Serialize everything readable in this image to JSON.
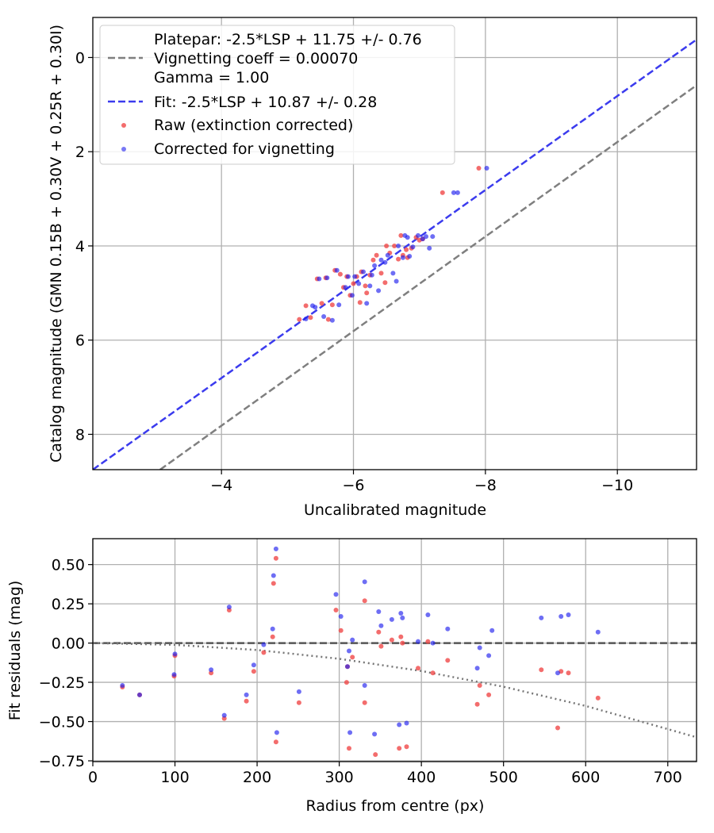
{
  "chart_data": [
    {
      "type": "scatter",
      "ylabel": "Catalog magnitude (GMN 0.15B + 0.30V + 0.25R + 0.30I)",
      "xlabel": "Uncalibrated magnitude",
      "xlim": [
        -2.05,
        -11.2
      ],
      "ylim": [
        8.75,
        -0.85
      ],
      "xticks": [
        -4,
        -6,
        -8,
        -10
      ],
      "xtick_labels": [
        "−4",
        "−6",
        "−8",
        "−10"
      ],
      "yticks": [
        0,
        2,
        4,
        6,
        8
      ],
      "ytick_labels": [
        "0",
        "2",
        "4",
        "6",
        "8"
      ],
      "grid": true,
      "legend_position": "top-left",
      "legend": [
        {
          "label": "Platepar: -2.5*LSP + 11.75 +/- 0.76",
          "style": "none"
        },
        {
          "label": "Vignetting coeff = 0.00070",
          "style": "gray-dashed"
        },
        {
          "label": "Gamma = 1.00",
          "style": "none"
        },
        {
          "label": "Fit: -2.5*LSP + 10.87 +/- 0.28",
          "style": "blue-dashed"
        },
        {
          "label": "Raw (extinction corrected)",
          "style": "red-dot"
        },
        {
          "label": "Corrected for vignetting",
          "style": "blue-dot"
        }
      ],
      "lines": [
        {
          "name": "Platepar",
          "color": "#7f7f7f",
          "dash": "dashed",
          "points": [
            [
              -3.07,
              8.75
            ],
            [
              -11.2,
              0.59
            ]
          ]
        },
        {
          "name": "Fit",
          "color": "#3b3bee",
          "dash": "dashed",
          "points": [
            [
              -2.05,
              8.75
            ],
            [
              -11.2,
              -0.38
            ]
          ]
        }
      ],
      "series": [
        {
          "name": "Raw (extinction corrected)",
          "color": "#f04848",
          "points": [
            [
              -7.9,
              2.35
            ],
            [
              -7.35,
              2.87
            ],
            [
              -5.18,
              5.56
            ],
            [
              -5.28,
              5.27
            ],
            [
              -5.35,
              5.52
            ],
            [
              -5.45,
              4.7
            ],
            [
              -5.52,
              5.22
            ],
            [
              -5.58,
              4.68
            ],
            [
              -5.62,
              5.56
            ],
            [
              -5.68,
              5.25
            ],
            [
              -5.72,
              4.52
            ],
            [
              -5.8,
              4.6
            ],
            [
              -5.85,
              4.88
            ],
            [
              -5.9,
              4.65
            ],
            [
              -5.95,
              5.05
            ],
            [
              -6.0,
              4.8
            ],
            [
              -6.05,
              4.65
            ],
            [
              -6.1,
              5.2
            ],
            [
              -6.12,
              4.55
            ],
            [
              -6.18,
              4.85
            ],
            [
              -6.2,
              5.0
            ],
            [
              -6.25,
              4.62
            ],
            [
              -6.3,
              4.3
            ],
            [
              -6.35,
              4.2
            ],
            [
              -6.42,
              4.58
            ],
            [
              -6.48,
              4.78
            ],
            [
              -6.5,
              4.0
            ],
            [
              -6.55,
              4.15
            ],
            [
              -6.62,
              4.0
            ],
            [
              -6.68,
              4.28
            ],
            [
              -6.72,
              3.78
            ],
            [
              -6.75,
              4.2
            ],
            [
              -6.8,
              4.08
            ],
            [
              -6.82,
              4.25
            ],
            [
              -6.88,
              4.05
            ],
            [
              -6.95,
              3.82
            ],
            [
              -7.0,
              3.88
            ],
            [
              -7.05,
              3.85
            ]
          ]
        },
        {
          "name": "Corrected for vignetting",
          "color": "#2020ee",
          "points": [
            [
              -8.02,
              2.35
            ],
            [
              -7.52,
              2.87
            ],
            [
              -7.58,
              2.87
            ],
            [
              -5.28,
              5.55
            ],
            [
              -5.38,
              5.27
            ],
            [
              -5.42,
              5.3
            ],
            [
              -5.48,
              4.7
            ],
            [
              -5.55,
              5.5
            ],
            [
              -5.6,
              4.68
            ],
            [
              -5.68,
              5.58
            ],
            [
              -5.75,
              4.52
            ],
            [
              -5.78,
              5.25
            ],
            [
              -5.88,
              4.88
            ],
            [
              -5.92,
              4.65
            ],
            [
              -5.98,
              5.05
            ],
            [
              -6.02,
              4.65
            ],
            [
              -6.08,
              4.8
            ],
            [
              -6.15,
              4.55
            ],
            [
              -6.2,
              5.22
            ],
            [
              -6.25,
              4.85
            ],
            [
              -6.28,
              4.62
            ],
            [
              -6.32,
              4.42
            ],
            [
              -6.38,
              4.95
            ],
            [
              -6.42,
              4.3
            ],
            [
              -6.48,
              4.35
            ],
            [
              -6.52,
              4.2
            ],
            [
              -6.6,
              4.58
            ],
            [
              -6.65,
              4.75
            ],
            [
              -6.68,
              4.0
            ],
            [
              -6.75,
              4.25
            ],
            [
              -6.78,
              3.78
            ],
            [
              -6.82,
              3.82
            ],
            [
              -6.85,
              4.22
            ],
            [
              -6.9,
              4.02
            ],
            [
              -6.98,
              3.78
            ],
            [
              -7.05,
              3.85
            ],
            [
              -7.1,
              3.8
            ],
            [
              -7.15,
              4.05
            ],
            [
              -7.2,
              3.8
            ]
          ]
        }
      ]
    },
    {
      "type": "scatter",
      "xlabel": "Radius from centre (px)",
      "ylabel": "Fit residuals (mag)",
      "xlim": [
        0,
        735
      ],
      "ylim": [
        -0.755,
        0.665
      ],
      "xticks": [
        0,
        100,
        200,
        300,
        400,
        500,
        600,
        700
      ],
      "xtick_labels": [
        "0",
        "100",
        "200",
        "300",
        "400",
        "500",
        "600",
        "700"
      ],
      "yticks": [
        0.5,
        0.25,
        0.0,
        -0.25,
        -0.5,
        -0.75
      ],
      "ytick_labels": [
        "0.50",
        "0.25",
        "0.00",
        "−0.25",
        "−0.50",
        "−0.75"
      ],
      "grid": true,
      "lines": [
        {
          "name": "zero",
          "color": "#555555",
          "dash": "dashed",
          "points": [
            [
              0,
              0
            ],
            [
              735,
              0
            ]
          ]
        },
        {
          "name": "vignetting model",
          "color": "#777777",
          "dash": "dotted",
          "points": [
            [
              0,
              0
            ],
            [
              100,
              -0.011
            ],
            [
              200,
              -0.044
            ],
            [
              300,
              -0.1
            ],
            [
              400,
              -0.178
            ],
            [
              500,
              -0.278
            ],
            [
              600,
              -0.4
            ],
            [
              735,
              -0.6
            ]
          ]
        }
      ],
      "series": [
        {
          "name": "Raw (extinction corrected)",
          "color": "#f04848",
          "points": [
            [
              36,
              -0.28
            ],
            [
              57,
              -0.33
            ],
            [
              99,
              -0.21
            ],
            [
              100,
              -0.08
            ],
            [
              144,
              -0.19
            ],
            [
              160,
              -0.48
            ],
            [
              166,
              0.21
            ],
            [
              187,
              -0.37
            ],
            [
              196,
              -0.18
            ],
            [
              208,
              -0.06
            ],
            [
              219,
              0.04
            ],
            [
              220,
              0.38
            ],
            [
              223,
              0.54
            ],
            [
              223,
              -0.63
            ],
            [
              251,
              -0.38
            ],
            [
              296,
              0.21
            ],
            [
              302,
              0.08
            ],
            [
              309,
              -0.25
            ],
            [
              310,
              -0.15
            ],
            [
              312,
              -0.67
            ],
            [
              316,
              -0.09
            ],
            [
              331,
              0.27
            ],
            [
              331,
              -0.38
            ],
            [
              344,
              -0.71
            ],
            [
              348,
              0.07
            ],
            [
              351,
              -0.02
            ],
            [
              364,
              0.02
            ],
            [
              373,
              -0.67
            ],
            [
              375,
              0.04
            ],
            [
              377,
              0.0
            ],
            [
              382,
              -0.66
            ],
            [
              396,
              -0.16
            ],
            [
              408,
              0.01
            ],
            [
              414,
              -0.19
            ],
            [
              432,
              -0.11
            ],
            [
              468,
              -0.39
            ],
            [
              471,
              -0.27
            ],
            [
              482,
              -0.33
            ],
            [
              546,
              -0.17
            ],
            [
              566,
              -0.54
            ],
            [
              570,
              -0.18
            ],
            [
              579,
              -0.19
            ],
            [
              615,
              -0.35
            ]
          ]
        },
        {
          "name": "Corrected for vignetting",
          "color": "#2020ee",
          "points": [
            [
              36,
              -0.27
            ],
            [
              57,
              -0.33
            ],
            [
              99,
              -0.2
            ],
            [
              100,
              -0.07
            ],
            [
              144,
              -0.17
            ],
            [
              160,
              -0.46
            ],
            [
              166,
              0.23
            ],
            [
              187,
              -0.33
            ],
            [
              196,
              -0.14
            ],
            [
              208,
              -0.01
            ],
            [
              219,
              0.09
            ],
            [
              220,
              0.43
            ],
            [
              223,
              0.6
            ],
            [
              224,
              -0.57
            ],
            [
              251,
              -0.31
            ],
            [
              296,
              0.31
            ],
            [
              302,
              0.17
            ],
            [
              310,
              -0.15
            ],
            [
              312,
              -0.05
            ],
            [
              313,
              -0.57
            ],
            [
              316,
              0.02
            ],
            [
              331,
              0.39
            ],
            [
              331,
              -0.27
            ],
            [
              343,
              -0.58
            ],
            [
              348,
              0.2
            ],
            [
              351,
              0.11
            ],
            [
              364,
              0.15
            ],
            [
              373,
              -0.52
            ],
            [
              375,
              0.19
            ],
            [
              377,
              0.16
            ],
            [
              382,
              -0.51
            ],
            [
              396,
              0.01
            ],
            [
              408,
              0.18
            ],
            [
              414,
              0.0
            ],
            [
              432,
              0.09
            ],
            [
              468,
              -0.16
            ],
            [
              471,
              -0.03
            ],
            [
              482,
              -0.08
            ],
            [
              486,
              0.08
            ],
            [
              546,
              0.16
            ],
            [
              566,
              -0.19
            ],
            [
              570,
              0.17
            ],
            [
              579,
              0.18
            ],
            [
              615,
              0.07
            ]
          ]
        }
      ]
    }
  ]
}
